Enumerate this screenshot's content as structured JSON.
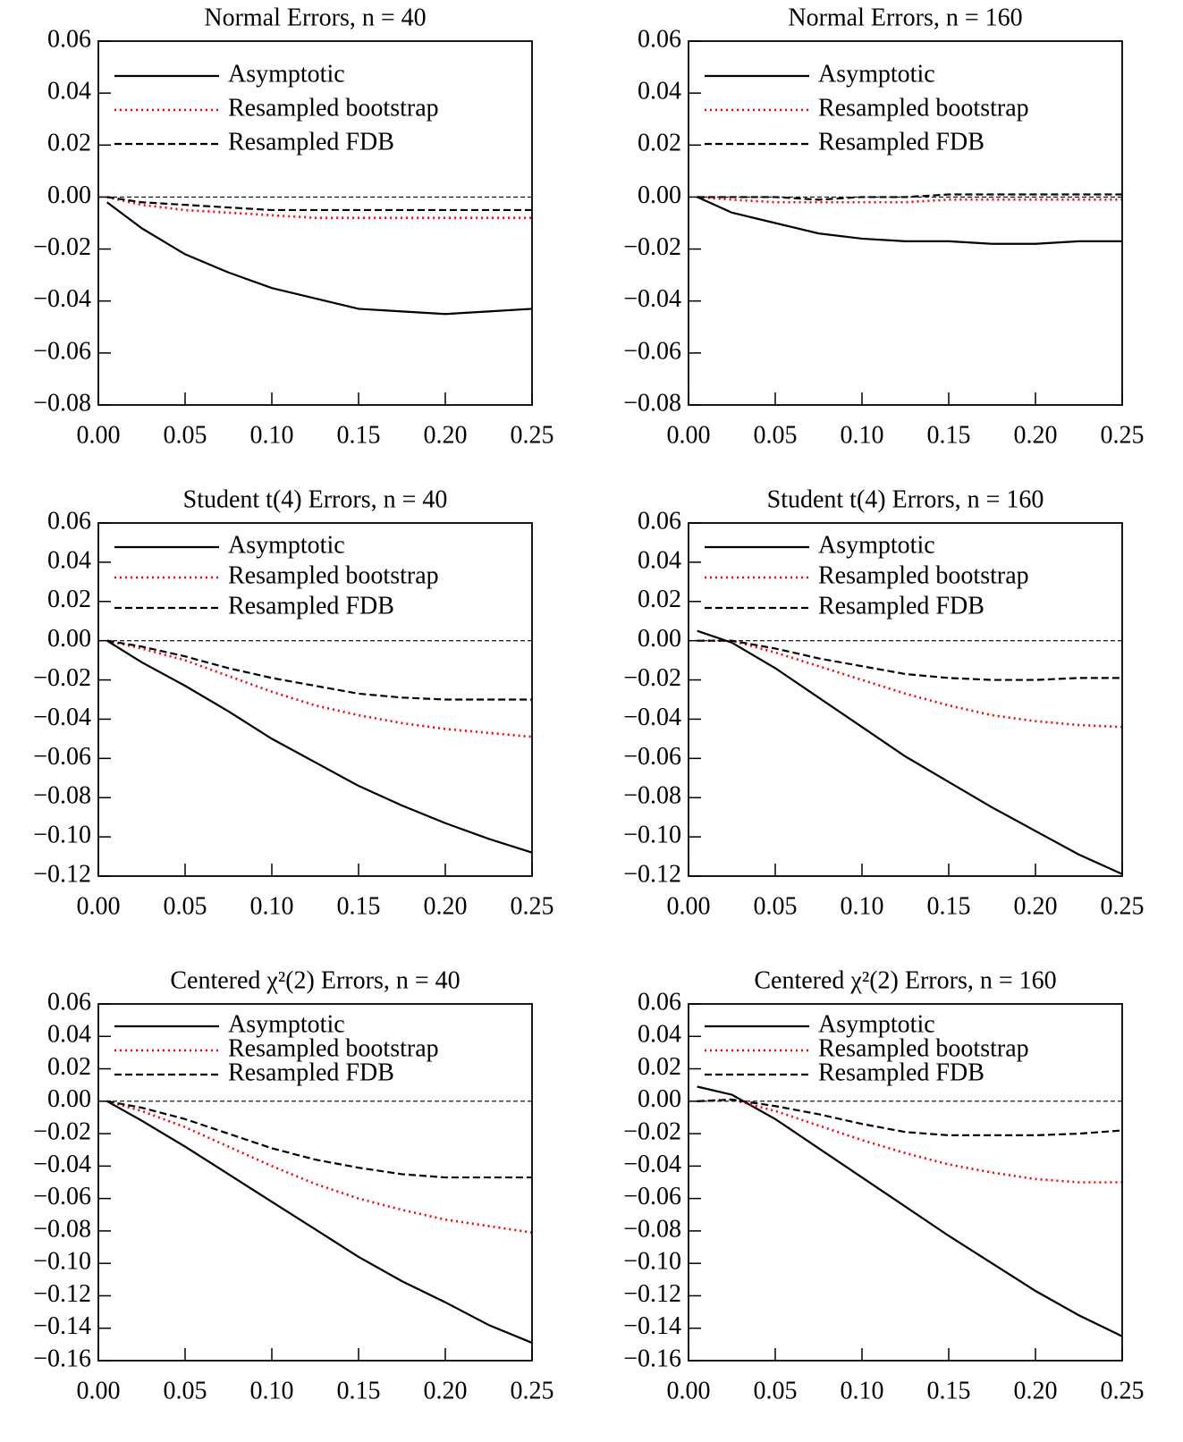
{
  "chart_data": [
    {
      "type": "line",
      "title": "Normal Errors, n = 40",
      "x": [
        0.005,
        0.025,
        0.05,
        0.075,
        0.1,
        0.125,
        0.15,
        0.175,
        0.2,
        0.225,
        0.25
      ],
      "series": [
        {
          "name": "Asymptotic",
          "color": "#000000",
          "dash": "solid",
          "values": [
            -0.002,
            -0.012,
            -0.022,
            -0.029,
            -0.035,
            -0.039,
            -0.043,
            -0.044,
            -0.045,
            -0.044,
            -0.043
          ]
        },
        {
          "name": "Resampled bootstrap",
          "color": "#ff0000",
          "dash": "dotted",
          "values": [
            0,
            -0.003,
            -0.005,
            -0.006,
            -0.007,
            -0.008,
            -0.008,
            -0.008,
            -0.008,
            -0.008,
            -0.008
          ]
        },
        {
          "name": "Resampled FDB",
          "color": "#000000",
          "dash": "dashed",
          "values": [
            0,
            -0.002,
            -0.003,
            -0.004,
            -0.005,
            -0.005,
            -0.005,
            -0.005,
            -0.005,
            -0.005,
            -0.005
          ]
        }
      ],
      "xlim": [
        0,
        0.25
      ],
      "ylim": [
        -0.08,
        0.06
      ],
      "reference_line": 0,
      "legend": "upper left",
      "xticks": [
        {
          "value": 0,
          "label": "0.00"
        },
        {
          "value": 0.05,
          "label": "0.05"
        },
        {
          "value": 0.1,
          "label": "0.10"
        },
        {
          "value": 0.15,
          "label": "0.15"
        },
        {
          "value": 0.2,
          "label": "0.20"
        },
        {
          "value": 0.25,
          "label": "0.25"
        }
      ],
      "yticks": [
        {
          "value": 0.06,
          "label": "0.06"
        },
        {
          "value": 0.04,
          "label": "0.04"
        },
        {
          "value": 0.02,
          "label": "0.02"
        },
        {
          "value": 0,
          "label": "0.00"
        },
        {
          "value": -0.02,
          "label": "−0.02"
        },
        {
          "value": -0.04,
          "label": "−0.04"
        },
        {
          "value": -0.06,
          "label": "−0.06"
        },
        {
          "value": -0.08,
          "label": "−0.08"
        }
      ]
    },
    {
      "type": "line",
      "title": "Normal Errors, n = 160",
      "x": [
        0.005,
        0.025,
        0.05,
        0.075,
        0.1,
        0.125,
        0.15,
        0.175,
        0.2,
        0.225,
        0.25
      ],
      "series": [
        {
          "name": "Asymptotic",
          "color": "#000000",
          "dash": "solid",
          "values": [
            0,
            -0.006,
            -0.01,
            -0.014,
            -0.016,
            -0.017,
            -0.017,
            -0.018,
            -0.018,
            -0.017,
            -0.017
          ]
        },
        {
          "name": "Resampled bootstrap",
          "color": "#ff0000",
          "dash": "dotted",
          "values": [
            0,
            -0.001,
            -0.002,
            -0.002,
            -0.002,
            -0.002,
            -0.001,
            -0.001,
            -0.001,
            -0.001,
            -0.001
          ]
        },
        {
          "name": "Resampled FDB",
          "color": "#000000",
          "dash": "dashed",
          "values": [
            0,
            0,
            0,
            -0.001,
            0,
            0,
            0.001,
            0.001,
            0.001,
            0.001,
            0.001
          ]
        }
      ],
      "xlim": [
        0,
        0.25
      ],
      "ylim": [
        -0.08,
        0.06
      ],
      "reference_line": 0,
      "legend": "upper left",
      "xticks": [
        {
          "value": 0,
          "label": "0.00"
        },
        {
          "value": 0.05,
          "label": "0.05"
        },
        {
          "value": 0.1,
          "label": "0.10"
        },
        {
          "value": 0.15,
          "label": "0.15"
        },
        {
          "value": 0.2,
          "label": "0.20"
        },
        {
          "value": 0.25,
          "label": "0.25"
        }
      ],
      "yticks": [
        {
          "value": 0.06,
          "label": "0.06"
        },
        {
          "value": 0.04,
          "label": "0.04"
        },
        {
          "value": 0.02,
          "label": "0.02"
        },
        {
          "value": 0,
          "label": "0.00"
        },
        {
          "value": -0.02,
          "label": "−0.02"
        },
        {
          "value": -0.04,
          "label": "−0.04"
        },
        {
          "value": -0.06,
          "label": "−0.06"
        },
        {
          "value": -0.08,
          "label": "−0.08"
        }
      ]
    },
    {
      "type": "line",
      "title": "Student t(4) Errors, n = 40",
      "x": [
        0.005,
        0.025,
        0.05,
        0.075,
        0.1,
        0.125,
        0.15,
        0.175,
        0.2,
        0.225,
        0.25
      ],
      "series": [
        {
          "name": "Asymptotic",
          "color": "#000000",
          "dash": "solid",
          "values": [
            0,
            -0.011,
            -0.023,
            -0.036,
            -0.05,
            -0.062,
            -0.074,
            -0.084,
            -0.093,
            -0.101,
            -0.108
          ]
        },
        {
          "name": "Resampled bootstrap",
          "color": "#ff0000",
          "dash": "dotted",
          "values": [
            0,
            -0.004,
            -0.01,
            -0.018,
            -0.026,
            -0.033,
            -0.038,
            -0.042,
            -0.045,
            -0.047,
            -0.049
          ]
        },
        {
          "name": "Resampled FDB",
          "color": "#000000",
          "dash": "dashed",
          "values": [
            0,
            -0.003,
            -0.008,
            -0.014,
            -0.019,
            -0.023,
            -0.027,
            -0.029,
            -0.03,
            -0.03,
            -0.03
          ]
        }
      ],
      "xlim": [
        0,
        0.25
      ],
      "ylim": [
        -0.12,
        0.06
      ],
      "reference_line": 0,
      "legend": "upper left",
      "xticks": [
        {
          "value": 0,
          "label": "0.00"
        },
        {
          "value": 0.05,
          "label": "0.05"
        },
        {
          "value": 0.1,
          "label": "0.10"
        },
        {
          "value": 0.15,
          "label": "0.15"
        },
        {
          "value": 0.2,
          "label": "0.20"
        },
        {
          "value": 0.25,
          "label": "0.25"
        }
      ],
      "yticks": [
        {
          "value": 0.06,
          "label": "0.06"
        },
        {
          "value": 0.04,
          "label": "0.04"
        },
        {
          "value": 0.02,
          "label": "0.02"
        },
        {
          "value": 0,
          "label": "0.00"
        },
        {
          "value": -0.02,
          "label": "−0.02"
        },
        {
          "value": -0.04,
          "label": "−0.04"
        },
        {
          "value": -0.06,
          "label": "−0.06"
        },
        {
          "value": -0.08,
          "label": "−0.08"
        },
        {
          "value": -0.1,
          "label": "−0.10"
        },
        {
          "value": -0.12,
          "label": "−0.12"
        }
      ]
    },
    {
      "type": "line",
      "title": "Student t(4) Errors, n = 160",
      "x": [
        0.005,
        0.025,
        0.05,
        0.075,
        0.1,
        0.125,
        0.15,
        0.175,
        0.2,
        0.225,
        0.25
      ],
      "series": [
        {
          "name": "Asymptotic",
          "color": "#000000",
          "dash": "solid",
          "values": [
            0.005,
            -0.001,
            -0.014,
            -0.029,
            -0.044,
            -0.059,
            -0.072,
            -0.085,
            -0.097,
            -0.109,
            -0.119
          ]
        },
        {
          "name": "Resampled bootstrap",
          "color": "#ff0000",
          "dash": "dotted",
          "values": [
            0,
            0,
            -0.006,
            -0.013,
            -0.02,
            -0.027,
            -0.033,
            -0.038,
            -0.041,
            -0.043,
            -0.044
          ]
        },
        {
          "name": "Resampled FDB",
          "color": "#000000",
          "dash": "dashed",
          "values": [
            0,
            0,
            -0.004,
            -0.009,
            -0.013,
            -0.017,
            -0.019,
            -0.02,
            -0.02,
            -0.019,
            -0.019
          ]
        }
      ],
      "xlim": [
        0,
        0.25
      ],
      "ylim": [
        -0.12,
        0.06
      ],
      "reference_line": 0,
      "legend": "upper left",
      "xticks": [
        {
          "value": 0,
          "label": "0.00"
        },
        {
          "value": 0.05,
          "label": "0.05"
        },
        {
          "value": 0.1,
          "label": "0.10"
        },
        {
          "value": 0.15,
          "label": "0.15"
        },
        {
          "value": 0.2,
          "label": "0.20"
        },
        {
          "value": 0.25,
          "label": "0.25"
        }
      ],
      "yticks": [
        {
          "value": 0.06,
          "label": "0.06"
        },
        {
          "value": 0.04,
          "label": "0.04"
        },
        {
          "value": 0.02,
          "label": "0.02"
        },
        {
          "value": 0,
          "label": "0.00"
        },
        {
          "value": -0.02,
          "label": "−0.02"
        },
        {
          "value": -0.04,
          "label": "−0.04"
        },
        {
          "value": -0.06,
          "label": "−0.06"
        },
        {
          "value": -0.08,
          "label": "−0.08"
        },
        {
          "value": -0.1,
          "label": "−0.10"
        },
        {
          "value": -0.12,
          "label": "−0.12"
        }
      ]
    },
    {
      "type": "line",
      "title": "Centered χ²(2) Errors, n = 40",
      "x": [
        0.005,
        0.025,
        0.05,
        0.075,
        0.1,
        0.125,
        0.15,
        0.175,
        0.2,
        0.225,
        0.25
      ],
      "series": [
        {
          "name": "Asymptotic",
          "color": "#000000",
          "dash": "solid",
          "values": [
            0,
            -0.012,
            -0.028,
            -0.045,
            -0.062,
            -0.079,
            -0.096,
            -0.111,
            -0.124,
            -0.138,
            -0.149
          ]
        },
        {
          "name": "Resampled bootstrap",
          "color": "#ff0000",
          "dash": "dotted",
          "values": [
            0,
            -0.006,
            -0.016,
            -0.028,
            -0.04,
            -0.051,
            -0.06,
            -0.067,
            -0.073,
            -0.077,
            -0.081
          ]
        },
        {
          "name": "Resampled FDB",
          "color": "#000000",
          "dash": "dashed",
          "values": [
            0,
            -0.004,
            -0.011,
            -0.02,
            -0.029,
            -0.036,
            -0.041,
            -0.045,
            -0.047,
            -0.047,
            -0.047
          ]
        }
      ],
      "xlim": [
        0,
        0.25
      ],
      "ylim": [
        -0.16,
        0.06
      ],
      "reference_line": 0,
      "legend": "upper left",
      "xticks": [
        {
          "value": 0,
          "label": "0.00"
        },
        {
          "value": 0.05,
          "label": "0.05"
        },
        {
          "value": 0.1,
          "label": "0.10"
        },
        {
          "value": 0.15,
          "label": "0.15"
        },
        {
          "value": 0.2,
          "label": "0.20"
        },
        {
          "value": 0.25,
          "label": "0.25"
        }
      ],
      "yticks": [
        {
          "value": 0.06,
          "label": "0.06"
        },
        {
          "value": 0.04,
          "label": "0.04"
        },
        {
          "value": 0.02,
          "label": "0.02"
        },
        {
          "value": 0,
          "label": "0.00"
        },
        {
          "value": -0.02,
          "label": "−0.02"
        },
        {
          "value": -0.04,
          "label": "−0.04"
        },
        {
          "value": -0.06,
          "label": "−0.06"
        },
        {
          "value": -0.08,
          "label": "−0.08"
        },
        {
          "value": -0.1,
          "label": "−0.10"
        },
        {
          "value": -0.12,
          "label": "−0.12"
        },
        {
          "value": -0.14,
          "label": "−0.14"
        },
        {
          "value": -0.16,
          "label": "−0.16"
        }
      ]
    },
    {
      "type": "line",
      "title": "Centered χ²(2) Errors, n = 160",
      "x": [
        0.005,
        0.025,
        0.05,
        0.075,
        0.1,
        0.125,
        0.15,
        0.175,
        0.2,
        0.225,
        0.25
      ],
      "series": [
        {
          "name": "Asymptotic",
          "color": "#000000",
          "dash": "solid",
          "values": [
            0.009,
            0.004,
            -0.011,
            -0.029,
            -0.047,
            -0.065,
            -0.083,
            -0.1,
            -0.117,
            -0.132,
            -0.145
          ]
        },
        {
          "name": "Resampled bootstrap",
          "color": "#ff0000",
          "dash": "dotted",
          "values": [
            0,
            0.001,
            -0.006,
            -0.015,
            -0.024,
            -0.032,
            -0.039,
            -0.044,
            -0.048,
            -0.05,
            -0.05
          ]
        },
        {
          "name": "Resampled FDB",
          "color": "#000000",
          "dash": "dashed",
          "values": [
            0,
            0.001,
            -0.003,
            -0.008,
            -0.014,
            -0.019,
            -0.021,
            -0.021,
            -0.021,
            -0.02,
            -0.018
          ]
        }
      ],
      "xlim": [
        0,
        0.25
      ],
      "ylim": [
        -0.16,
        0.06
      ],
      "reference_line": 0,
      "legend": "upper left",
      "xticks": [
        {
          "value": 0,
          "label": "0.00"
        },
        {
          "value": 0.05,
          "label": "0.05"
        },
        {
          "value": 0.1,
          "label": "0.10"
        },
        {
          "value": 0.15,
          "label": "0.15"
        },
        {
          "value": 0.2,
          "label": "0.20"
        },
        {
          "value": 0.25,
          "label": "0.25"
        }
      ],
      "yticks": [
        {
          "value": 0.06,
          "label": "0.06"
        },
        {
          "value": 0.04,
          "label": "0.04"
        },
        {
          "value": 0.02,
          "label": "0.02"
        },
        {
          "value": 0,
          "label": "0.00"
        },
        {
          "value": -0.02,
          "label": "−0.02"
        },
        {
          "value": -0.04,
          "label": "−0.04"
        },
        {
          "value": -0.06,
          "label": "−0.06"
        },
        {
          "value": -0.08,
          "label": "−0.08"
        },
        {
          "value": -0.1,
          "label": "−0.10"
        },
        {
          "value": -0.12,
          "label": "−0.12"
        },
        {
          "value": -0.14,
          "label": "−0.14"
        },
        {
          "value": -0.16,
          "label": "−0.16"
        }
      ]
    }
  ]
}
